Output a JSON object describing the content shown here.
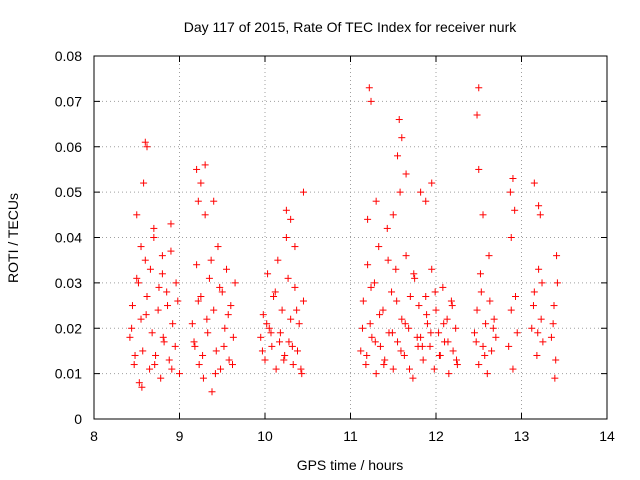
{
  "chart_data": {
    "type": "scatter",
    "title": "Day 117 of 2015, Rate Of TEC Index for receiver nurk",
    "xlabel": "GPS time / hours",
    "ylabel": "ROTI / TECUs",
    "xlim": [
      8,
      14
    ],
    "ylim": [
      0,
      0.08
    ],
    "xticks": [
      8,
      9,
      10,
      11,
      12,
      13,
      14
    ],
    "xtick_labels": [
      "8",
      "9",
      "10",
      "11",
      "12",
      "13",
      "14"
    ],
    "yticks": [
      0,
      0.01,
      0.02,
      0.03,
      0.04,
      0.05,
      0.06,
      0.07,
      0.08
    ],
    "ytick_labels": [
      "0",
      "0.01",
      "0.02",
      "0.03",
      "0.04",
      "0.05",
      "0.06",
      "0.07",
      "0.08"
    ],
    "grid": true,
    "marker": "+",
    "color": "#ff0000",
    "series": [
      {
        "name": "ROTI",
        "x": [
          8.42,
          8.45,
          8.47,
          8.5,
          8.53,
          8.55,
          8.57,
          8.6,
          8.62,
          8.65,
          8.68,
          8.7,
          8.72,
          8.75,
          8.78,
          8.8,
          8.82,
          8.85,
          8.88,
          8.9,
          8.92,
          8.95,
          8.98,
          9.0,
          8.44,
          8.48,
          8.52,
          8.56,
          8.61,
          8.66,
          8.71,
          8.76,
          8.81,
          8.86,
          8.91,
          8.96,
          8.5,
          8.6,
          8.58,
          8.62,
          8.55,
          8.7,
          8.8,
          8.9,
          9.15,
          9.18,
          9.2,
          9.23,
          9.25,
          9.28,
          9.3,
          9.33,
          9.35,
          9.38,
          9.4,
          9.43,
          9.45,
          9.48,
          9.5,
          9.53,
          9.55,
          9.58,
          9.6,
          9.63,
          9.65,
          9.17,
          9.22,
          9.27,
          9.32,
          9.37,
          9.42,
          9.47,
          9.52,
          9.57,
          9.62,
          9.2,
          9.22,
          9.3,
          9.25,
          9.4,
          9.95,
          9.98,
          10.0,
          10.03,
          10.05,
          10.08,
          10.1,
          10.13,
          10.15,
          10.18,
          10.2,
          10.23,
          10.25,
          10.28,
          10.3,
          10.33,
          10.35,
          10.38,
          10.4,
          10.43,
          10.45,
          9.97,
          10.02,
          10.07,
          10.12,
          10.17,
          10.22,
          10.27,
          10.32,
          10.37,
          10.42,
          10.3,
          10.35,
          10.45,
          10.25,
          11.12,
          11.15,
          11.18,
          11.2,
          11.23,
          11.25,
          11.28,
          11.3,
          11.33,
          11.35,
          11.38,
          11.4,
          11.43,
          11.45,
          11.48,
          11.5,
          11.53,
          11.55,
          11.58,
          11.6,
          11.63,
          11.65,
          11.68,
          11.7,
          11.73,
          11.75,
          11.78,
          11.8,
          11.14,
          11.19,
          11.24,
          11.29,
          11.34,
          11.39,
          11.44,
          11.49,
          11.54,
          11.59,
          11.64,
          11.69,
          11.74,
          11.79,
          11.2,
          11.22,
          11.24,
          11.57,
          11.6,
          11.55,
          11.65,
          11.3,
          11.5,
          11.82,
          11.85,
          11.88,
          11.9,
          11.93,
          11.95,
          11.98,
          12.0,
          12.03,
          12.05,
          12.08,
          12.1,
          12.13,
          12.15,
          12.18,
          12.2,
          12.23,
          12.25,
          11.84,
          11.89,
          11.94,
          11.99,
          12.04,
          12.09,
          12.14,
          12.19,
          12.24,
          11.88,
          11.95,
          11.82,
          12.45,
          12.48,
          12.5,
          12.53,
          12.55,
          12.58,
          12.6,
          12.63,
          12.65,
          12.68,
          12.7,
          12.47,
          12.52,
          12.57,
          12.62,
          12.67,
          12.5,
          12.48,
          12.5,
          12.55,
          12.85,
          12.88,
          12.9,
          12.93,
          12.95,
          12.87,
          12.92,
          12.9,
          12.88,
          13.12,
          13.15,
          13.18,
          13.2,
          13.23,
          13.25,
          13.14,
          13.19,
          13.24,
          13.15,
          13.2,
          13.22,
          13.35,
          13.38,
          13.4,
          13.42,
          13.37,
          13.41,
          13.39
        ],
        "y": [
          0.018,
          0.025,
          0.012,
          0.031,
          0.008,
          0.022,
          0.015,
          0.035,
          0.027,
          0.011,
          0.019,
          0.04,
          0.014,
          0.024,
          0.009,
          0.032,
          0.017,
          0.028,
          0.013,
          0.037,
          0.021,
          0.016,
          0.026,
          0.01,
          0.02,
          0.014,
          0.03,
          0.007,
          0.023,
          0.033,
          0.012,
          0.029,
          0.018,
          0.025,
          0.011,
          0.03,
          0.045,
          0.061,
          0.052,
          0.06,
          0.038,
          0.042,
          0.036,
          0.043,
          0.021,
          0.016,
          0.034,
          0.012,
          0.027,
          0.009,
          0.045,
          0.019,
          0.031,
          0.006,
          0.024,
          0.015,
          0.038,
          0.011,
          0.028,
          0.02,
          0.033,
          0.013,
          0.025,
          0.018,
          0.03,
          0.017,
          0.026,
          0.014,
          0.022,
          0.035,
          0.01,
          0.029,
          0.016,
          0.023,
          0.012,
          0.055,
          0.048,
          0.056,
          0.052,
          0.048,
          0.018,
          0.023,
          0.013,
          0.032,
          0.02,
          0.016,
          0.027,
          0.011,
          0.035,
          0.019,
          0.024,
          0.014,
          0.04,
          0.017,
          0.022,
          0.012,
          0.029,
          0.015,
          0.021,
          0.01,
          0.026,
          0.015,
          0.021,
          0.019,
          0.028,
          0.017,
          0.013,
          0.031,
          0.016,
          0.024,
          0.011,
          0.044,
          0.038,
          0.05,
          0.046,
          0.015,
          0.026,
          0.012,
          0.034,
          0.021,
          0.018,
          0.03,
          0.01,
          0.038,
          0.016,
          0.024,
          0.013,
          0.042,
          0.019,
          0.028,
          0.011,
          0.033,
          0.017,
          0.05,
          0.022,
          0.014,
          0.036,
          0.02,
          0.027,
          0.009,
          0.031,
          0.018,
          0.025,
          0.02,
          0.014,
          0.029,
          0.017,
          0.023,
          0.012,
          0.035,
          0.019,
          0.026,
          0.015,
          0.021,
          0.011,
          0.032,
          0.016,
          0.044,
          0.073,
          0.07,
          0.066,
          0.062,
          0.058,
          0.054,
          0.048,
          0.045,
          0.018,
          0.013,
          0.027,
          0.021,
          0.016,
          0.033,
          0.011,
          0.024,
          0.019,
          0.014,
          0.029,
          0.017,
          0.022,
          0.01,
          0.026,
          0.015,
          0.02,
          0.012,
          0.016,
          0.023,
          0.019,
          0.028,
          0.014,
          0.021,
          0.017,
          0.025,
          0.013,
          0.048,
          0.052,
          0.05,
          0.019,
          0.024,
          0.012,
          0.028,
          0.016,
          0.021,
          0.01,
          0.026,
          0.015,
          0.022,
          0.018,
          0.017,
          0.032,
          0.014,
          0.036,
          0.02,
          0.073,
          0.067,
          0.055,
          0.045,
          0.016,
          0.024,
          0.011,
          0.027,
          0.019,
          0.05,
          0.046,
          0.053,
          0.04,
          0.02,
          0.028,
          0.014,
          0.033,
          0.022,
          0.017,
          0.025,
          0.019,
          0.03,
          0.052,
          0.047,
          0.045,
          0.018,
          0.025,
          0.013,
          0.03,
          0.021,
          0.036,
          0.009
        ]
      }
    ]
  }
}
